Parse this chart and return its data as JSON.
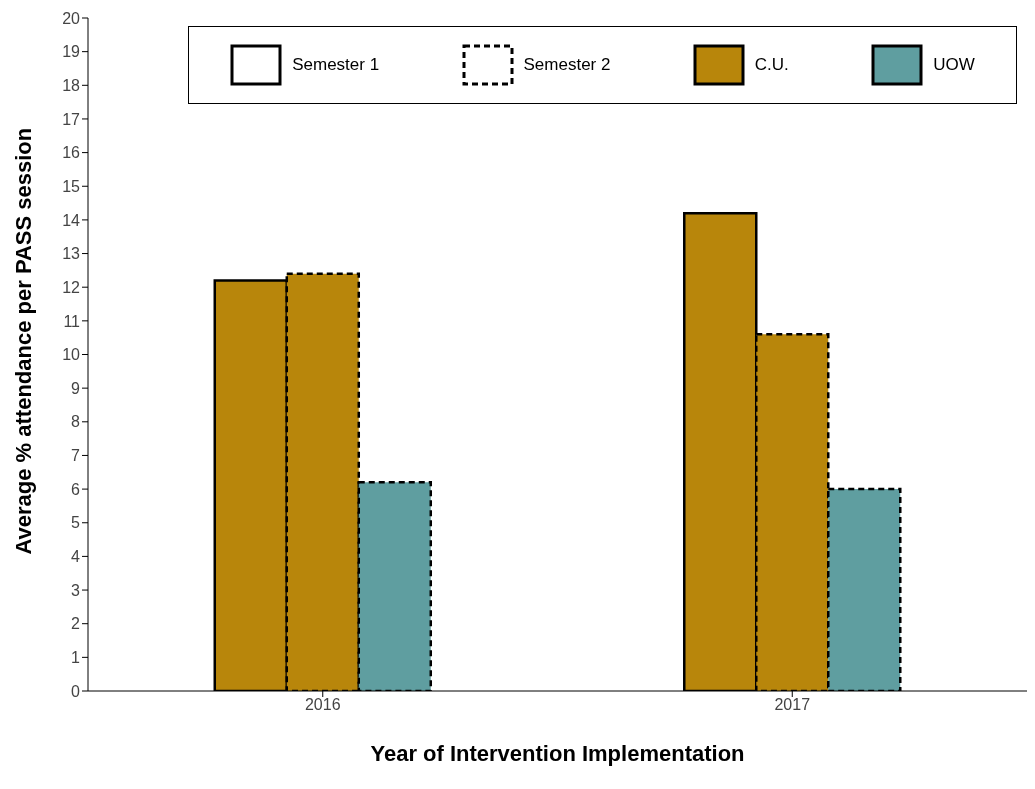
{
  "chart_data": {
    "type": "bar",
    "xlabel": "Year of Intervention Implementation",
    "ylabel": "Average % attendance per PASS session",
    "categories": [
      "2016",
      "2017"
    ],
    "series": [
      {
        "name": "C.U.",
        "color": "#b8860b",
        "line_style": "solid",
        "values": [
          12.2,
          14.2
        ]
      },
      {
        "color": "#b8860b",
        "line_style": "dashed",
        "values": [
          12.4,
          10.6
        ]
      },
      {
        "name": "UOW",
        "color": "#5f9ea0",
        "line_style": "dashed",
        "values": [
          6.2,
          6.0
        ]
      }
    ],
    "annotations": [
      "Semester 1",
      "Semester 2"
    ],
    "ylim": [
      0,
      20
    ],
    "yticks": [
      0,
      1,
      2,
      3,
      4,
      5,
      6,
      7,
      8,
      9,
      10,
      11,
      12,
      13,
      14,
      15,
      16,
      17,
      18,
      19,
      20
    ],
    "grid": false,
    "legend": "top"
  }
}
